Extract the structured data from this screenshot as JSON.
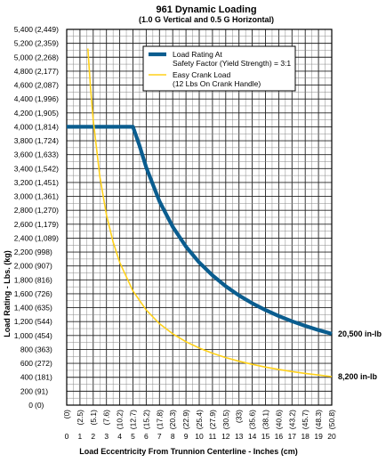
{
  "chart_data": {
    "type": "line",
    "title": "961 Dynamic Loading",
    "subtitle": "(1.0 G Vertical and 0.5 G Horizontal)",
    "xlabel": "Load Eccentricity From Trunnion Centerline - Inches (cm)",
    "ylabel": "Load Rating - Lbs. (kg)",
    "xlim": [
      0,
      20
    ],
    "ylim": [
      0,
      5400
    ],
    "grid": true,
    "x_ticks": [
      0,
      1,
      2,
      3,
      4,
      5,
      6,
      7,
      8,
      9,
      10,
      11,
      12,
      13,
      14,
      15,
      16,
      17,
      18,
      19,
      20
    ],
    "x_tick_labels": [
      "0",
      "1",
      "2",
      "3",
      "4",
      "5",
      "6",
      "7",
      "8",
      "9",
      "10",
      "11",
      "12",
      "13",
      "14",
      "15",
      "16",
      "17",
      "18",
      "19",
      "20"
    ],
    "x_tick_labels_cm": [
      "(0)",
      "(2.5)",
      "(5.1)",
      "(7.6)",
      "(10.2)",
      "(12.7)",
      "(15.2)",
      "(17.8)",
      "(20.3)",
      "(22.9)",
      "(25.4)",
      "(27.9)",
      "(30.5)",
      "(33)",
      "(35.6)",
      "(38.1)",
      "(40.6)",
      "(43.2)",
      "(45.7)",
      "(48.3)",
      "(50.8)"
    ],
    "y_tick_labels": [
      "0",
      "200",
      "400",
      "600",
      "800",
      "1,000",
      "1,200",
      "1,400",
      "1,600",
      "1,800",
      "2,000",
      "2,200",
      "2,400",
      "2,600",
      "2,800",
      "3,000",
      "3,200",
      "3,400",
      "3,600",
      "3,800",
      "4,000",
      "4,200",
      "4,400",
      "4,600",
      "4,800",
      "5,000",
      "5,200",
      "5,400"
    ],
    "y_tick_labels_kg": [
      "(0)",
      "(91)",
      "(181)",
      "(272)",
      "(363)",
      "(454)",
      "(544)",
      "(635)",
      "(726)",
      "(816)",
      "(907)",
      "(998)",
      "(1,089)",
      "(1,179)",
      "(1,270)",
      "(1,361)",
      "(1,451)",
      "(1,542)",
      "(1,633)",
      "(1,724)",
      "(1,814)",
      "(1,905)",
      "(1,996)",
      "(2,087)",
      "(2,177)",
      "(2,268)",
      "(2,359)",
      "(2,449)"
    ],
    "legend_position": "top-right",
    "series": [
      {
        "name": "Load Rating At Safety Factor (Yield Strength) = 3:1",
        "legend_lines": [
          "Load Rating At",
          "Safety Factor (Yield Strength) = 3:1"
        ],
        "color": "#0a5d8f",
        "x": [
          0,
          1,
          2,
          3,
          4,
          5,
          5.5,
          6,
          7,
          8,
          9,
          10,
          11,
          12,
          13,
          14,
          15,
          16,
          17,
          18,
          19,
          20
        ],
        "y": [
          4000,
          4000,
          4000,
          4000,
          4000,
          4000,
          3727,
          3417,
          2929,
          2563,
          2278,
          2050,
          1864,
          1708,
          1577,
          1464,
          1367,
          1281,
          1206,
          1139,
          1079,
          1025
        ],
        "end_label": "20,500 in-lb"
      },
      {
        "name": "Easy Crank Load (12 Lbs On Crank Handle)",
        "legend_lines": [
          "Easy Crank Load",
          "(12 Lbs On Crank Handle)"
        ],
        "color": "#ffd11a",
        "x": [
          1.6,
          1.8,
          2,
          2.5,
          3,
          3.5,
          4,
          5,
          6,
          7,
          8,
          9,
          10,
          11,
          12,
          13,
          14,
          15,
          16,
          17,
          18,
          19,
          20
        ],
        "y": [
          5125,
          4556,
          4100,
          3280,
          2733,
          2343,
          2050,
          1640,
          1367,
          1171,
          1025,
          911,
          820,
          745,
          683,
          631,
          586,
          547,
          513,
          482,
          456,
          432,
          410
        ],
        "end_label": "8,200 in-lb"
      }
    ]
  }
}
